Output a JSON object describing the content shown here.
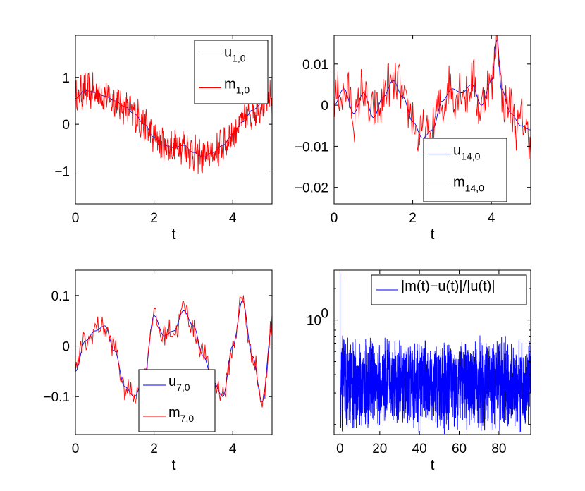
{
  "colors": {
    "u": "#0000ff",
    "m": "#ff0000",
    "axis": "#000000",
    "background": "#ffffff"
  },
  "chart_data": [
    {
      "id": "p1",
      "type": "line",
      "xlabel": "t",
      "xlim": [
        0,
        5
      ],
      "ylim": [
        -1.7,
        1.9
      ],
      "xticks": [
        0,
        2,
        4
      ],
      "xtick_labels": [
        "0",
        "2",
        "4"
      ],
      "yticks": [
        -1,
        0,
        1
      ],
      "ytick_labels": [
        "−1",
        "0",
        "1"
      ],
      "legend": {
        "position": "top-right",
        "entries": [
          {
            "base": "u",
            "sub": "1,0"
          },
          {
            "base": "m",
            "sub": "1,0"
          }
        ]
      },
      "series": [
        {
          "name": "u_{1,0}",
          "color": "#0000ff",
          "x": [
            0,
            0.25,
            0.5,
            0.75,
            1,
            1.25,
            1.5,
            1.75,
            2,
            2.25,
            2.5,
            2.75,
            3,
            3.25,
            3.5,
            3.75,
            4,
            4.25,
            4.5,
            4.75,
            5
          ],
          "y": [
            0.55,
            0.72,
            0.68,
            0.6,
            0.5,
            0.38,
            0.22,
            0.0,
            -0.28,
            -0.45,
            -0.5,
            -0.45,
            -0.6,
            -0.7,
            -0.6,
            -0.45,
            -0.2,
            0.05,
            0.3,
            0.45,
            0.55
          ]
        },
        {
          "name": "m_{1,0}",
          "color": "#ff0000",
          "follows": "u_{1,0}",
          "noise": 0.32,
          "freq": 60,
          "points": 500
        }
      ]
    },
    {
      "id": "p2",
      "type": "line",
      "xlabel": "t",
      "xlim": [
        0,
        5
      ],
      "ylim": [
        -0.024,
        0.017
      ],
      "xticks": [
        0,
        2,
        4
      ],
      "xtick_labels": [
        "0",
        "2",
        "4"
      ],
      "yticks": [
        -0.02,
        -0.01,
        0,
        0.01
      ],
      "ytick_labels": [
        "−0.02",
        "−0.01",
        "0",
        "0.01"
      ],
      "legend": {
        "position": "bottom-right",
        "entries": [
          {
            "base": "u",
            "sub": "14,0"
          },
          {
            "base": "m",
            "sub": "14,0"
          }
        ]
      },
      "series": [
        {
          "name": "u_{14,0}",
          "color": "#0000ff",
          "x": [
            0,
            0.25,
            0.5,
            0.75,
            1,
            1.25,
            1.5,
            1.75,
            2,
            2.25,
            2.5,
            2.75,
            3,
            3.25,
            3.5,
            3.75,
            4,
            4.15,
            4.25,
            4.5,
            4.75,
            5
          ],
          "y": [
            0.0,
            0.004,
            -0.002,
            0.003,
            -0.003,
            0.002,
            0.006,
            0.002,
            -0.004,
            -0.008,
            -0.006,
            0.001,
            0.004,
            0.003,
            0.005,
            0.0,
            0.006,
            0.016,
            0.004,
            -0.002,
            -0.005,
            -0.006
          ]
        },
        {
          "name": "m_{14,0}",
          "color": "#ff0000",
          "follows": "u_{14,0}",
          "noise": 0.0055,
          "freq": 20,
          "points": 260
        }
      ]
    },
    {
      "id": "p3",
      "type": "line",
      "xlabel": "t",
      "xlim": [
        0,
        5
      ],
      "ylim": [
        -0.175,
        0.15
      ],
      "xticks": [
        0,
        2,
        4
      ],
      "xtick_labels": [
        "0",
        "2",
        "4"
      ],
      "yticks": [
        -0.1,
        0,
        0.1
      ],
      "ytick_labels": [
        "−0.1",
        "0",
        "0.1"
      ],
      "legend": {
        "position": "bottom-center",
        "entries": [
          {
            "base": "u",
            "sub": "7,0"
          },
          {
            "base": "m",
            "sub": "7,0"
          }
        ]
      },
      "series": [
        {
          "name": "u_{7,0}",
          "color": "#0000ff",
          "x": [
            0,
            0.25,
            0.5,
            0.75,
            1,
            1.25,
            1.5,
            1.75,
            2,
            2.25,
            2.5,
            2.75,
            3,
            3.25,
            3.5,
            3.75,
            4,
            4.25,
            4.5,
            4.75,
            5
          ],
          "y": [
            -0.05,
            0.01,
            0.03,
            0.04,
            -0.01,
            -0.08,
            -0.1,
            -0.06,
            0.06,
            0.02,
            0.03,
            0.07,
            0.04,
            -0.02,
            -0.07,
            -0.1,
            0.0,
            0.09,
            -0.02,
            -0.11,
            0.04
          ]
        },
        {
          "name": "m_{7,0}",
          "color": "#ff0000",
          "follows": "u_{7,0}",
          "noise": 0.022,
          "freq": 14,
          "points": 220
        }
      ]
    },
    {
      "id": "p4",
      "type": "line",
      "xlabel": "t",
      "xlim": [
        -3,
        96
      ],
      "ylim": [
        0.08,
        3.0
      ],
      "yscale": "log",
      "xticks": [
        0,
        20,
        40,
        60,
        80
      ],
      "xtick_labels": [
        "0",
        "20",
        "40",
        "60",
        "80"
      ],
      "yticks": [
        1
      ],
      "ytick_labels": [
        "10"
      ],
      "ytick_exponent": "0",
      "legend": {
        "position": "top-right",
        "entries": [
          {
            "base": "|m(t)−u(t)|/|u(t)|",
            "sub": ""
          }
        ]
      },
      "series": [
        {
          "name": "|m(t)-u(t)|/|u(t)|",
          "color": "#0000ff",
          "x_range": [
            0,
            96
          ],
          "baseline": 0.24,
          "spread": 0.85,
          "spike_start": 3.0,
          "points": 1600
        }
      ]
    }
  ]
}
